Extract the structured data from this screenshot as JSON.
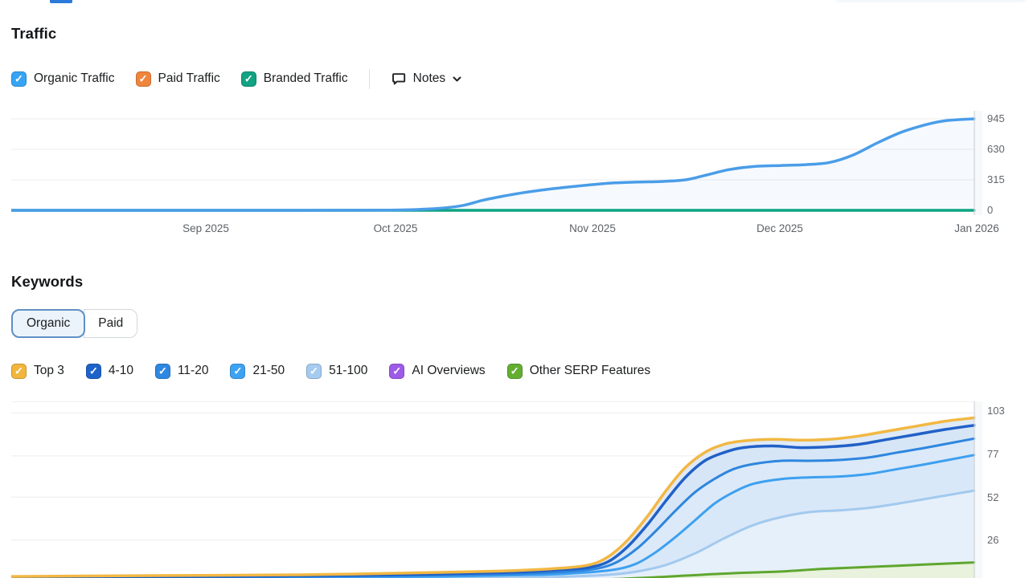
{
  "brand_accent": "#2b79d8",
  "traffic": {
    "title": "Traffic",
    "legend": [
      {
        "label": "Organic Traffic",
        "color": "#36A4F4",
        "checked": true
      },
      {
        "label": "Paid Traffic",
        "color": "#F0853C",
        "checked": true
      },
      {
        "label": "Branded Traffic",
        "color": "#12A284",
        "checked": true
      }
    ],
    "notes_label": "Notes"
  },
  "keywords": {
    "title": "Keywords",
    "toggle": [
      {
        "label": "Organic",
        "selected": true
      },
      {
        "label": "Paid",
        "selected": false
      }
    ],
    "legend": [
      {
        "label": "Top 3",
        "color": "#F2B63C",
        "checked": true
      },
      {
        "label": "4-10",
        "color": "#1E63C9",
        "checked": true
      },
      {
        "label": "11-20",
        "color": "#2E87E0",
        "checked": true
      },
      {
        "label": "21-50",
        "color": "#3DA2F2",
        "checked": true
      },
      {
        "label": "51-100",
        "color": "#A6CBF0",
        "checked": true
      },
      {
        "label": "AI Overviews",
        "color": "#9D5BE8",
        "checked": true
      },
      {
        "label": "Other SERP Features",
        "color": "#63AE31",
        "checked": true
      }
    ]
  },
  "chart_data": [
    {
      "name": "traffic-over-time",
      "type": "line",
      "title": "Traffic",
      "x_axis_labels": [
        "Sep 2025",
        "Oct 2025",
        "Nov 2025",
        "Dec 2025",
        "Jan 2026"
      ],
      "y_ticks": [
        945,
        630,
        315,
        0
      ],
      "ylim": [
        0,
        945
      ],
      "grid": "horizontal",
      "legend_position": "top",
      "series": [
        {
          "name": "Paid Traffic",
          "color": "#F0853C",
          "width": 3,
          "points": [
            [
              0,
              0
            ],
            [
              1,
              0
            ]
          ]
        },
        {
          "name": "Branded Traffic",
          "color": "#0CA381",
          "width": 3.5,
          "points": [
            [
              0,
              0
            ],
            [
              1,
              0
            ]
          ]
        },
        {
          "name": "Organic Traffic",
          "color": "#4A9DE8",
          "width": 3.5,
          "fill": "rgba(74,157,232,0.05)",
          "points": [
            [
              0,
              0
            ],
            [
              0.25,
              0
            ],
            [
              0.36,
              1
            ],
            [
              0.4,
              3
            ],
            [
              0.425,
              10
            ],
            [
              0.45,
              25
            ],
            [
              0.47,
              52
            ],
            [
              0.49,
              105
            ],
            [
              0.51,
              145
            ],
            [
              0.53,
              180
            ],
            [
              0.555,
              215
            ],
            [
              0.58,
              243
            ],
            [
              0.603,
              265
            ],
            [
              0.625,
              283
            ],
            [
              0.65,
              292
            ],
            [
              0.675,
              298
            ],
            [
              0.7,
              315
            ],
            [
              0.72,
              360
            ],
            [
              0.745,
              420
            ],
            [
              0.77,
              452
            ],
            [
              0.8,
              463
            ],
            [
              0.825,
              472
            ],
            [
              0.85,
              495
            ],
            [
              0.875,
              575
            ],
            [
              0.9,
              700
            ],
            [
              0.925,
              810
            ],
            [
              0.95,
              885
            ],
            [
              0.97,
              925
            ],
            [
              1,
              945
            ]
          ]
        }
      ]
    },
    {
      "name": "keywords-positions",
      "type": "area",
      "title": "Keywords (Organic)",
      "y_ticks": [
        103,
        77,
        52,
        26
      ],
      "ylim": [
        0,
        110
      ],
      "grid": "horizontal",
      "series": [
        {
          "name": "AI Overviews",
          "color": "#9D5BE8",
          "width": 2.5,
          "points": [
            [
              0,
              0.2
            ],
            [
              0.5,
              0.4
            ],
            [
              1,
              1
            ]
          ]
        },
        {
          "name": "Other SERP Features",
          "color": "#5FA62F",
          "width": 3,
          "points": [
            [
              0,
              0.5
            ],
            [
              0.3,
              1
            ],
            [
              0.5,
              1.5
            ],
            [
              0.6,
              2
            ],
            [
              0.65,
              3
            ],
            [
              0.7,
              4.5
            ],
            [
              0.75,
              6
            ],
            [
              0.8,
              7
            ],
            [
              0.84,
              8.5
            ],
            [
              0.88,
              9.5
            ],
            [
              0.92,
              10.5
            ],
            [
              0.96,
              11.5
            ],
            [
              1,
              12.5
            ]
          ]
        },
        {
          "name": "51-100",
          "color": "#A3C9EE",
          "width": 3,
          "points": [
            [
              0,
              2
            ],
            [
              0.3,
              2.5
            ],
            [
              0.5,
              3
            ],
            [
              0.58,
              4
            ],
            [
              0.62,
              5
            ],
            [
              0.65,
              7
            ],
            [
              0.68,
              11
            ],
            [
              0.71,
              18
            ],
            [
              0.74,
              27
            ],
            [
              0.77,
              35
            ],
            [
              0.8,
              40
            ],
            [
              0.83,
              43
            ],
            [
              0.86,
              44
            ],
            [
              0.89,
              45.5
            ],
            [
              0.92,
              48
            ],
            [
              0.95,
              51
            ],
            [
              1,
              56
            ]
          ]
        },
        {
          "name": "21-50",
          "color": "#3DA0F0",
          "width": 3,
          "points": [
            [
              0,
              2.5
            ],
            [
              0.25,
              3
            ],
            [
              0.45,
              4
            ],
            [
              0.55,
              5
            ],
            [
              0.6,
              6.5
            ],
            [
              0.63,
              8.5
            ],
            [
              0.65,
              12
            ],
            [
              0.67,
              19
            ],
            [
              0.69,
              28
            ],
            [
              0.71,
              38
            ],
            [
              0.73,
              48
            ],
            [
              0.75,
              55
            ],
            [
              0.77,
              60
            ],
            [
              0.8,
              63
            ],
            [
              0.83,
              64
            ],
            [
              0.86,
              64.5
            ],
            [
              0.89,
              66
            ],
            [
              0.92,
              69
            ],
            [
              0.95,
              72
            ],
            [
              1,
              77.5
            ]
          ]
        },
        {
          "name": "11-20",
          "color": "#2E86DE",
          "width": 3,
          "points": [
            [
              0,
              3
            ],
            [
              0.2,
              3.5
            ],
            [
              0.4,
              4.5
            ],
            [
              0.52,
              5.5
            ],
            [
              0.58,
              7
            ],
            [
              0.61,
              9
            ],
            [
              0.63,
              13
            ],
            [
              0.65,
              21
            ],
            [
              0.67,
              32
            ],
            [
              0.69,
              44
            ],
            [
              0.71,
              55
            ],
            [
              0.73,
              63
            ],
            [
              0.75,
              69
            ],
            [
              0.77,
              72
            ],
            [
              0.8,
              74
            ],
            [
              0.83,
              74
            ],
            [
              0.86,
              74.5
            ],
            [
              0.89,
              76
            ],
            [
              0.92,
              79
            ],
            [
              0.95,
              82
            ],
            [
              1,
              87.5
            ]
          ]
        },
        {
          "name": "4-10",
          "color": "#2161C7",
          "width": 3.5,
          "points": [
            [
              0,
              3.5
            ],
            [
              0.2,
              4
            ],
            [
              0.4,
              5
            ],
            [
              0.52,
              6.5
            ],
            [
              0.57,
              8
            ],
            [
              0.6,
              9.5
            ],
            [
              0.62,
              13
            ],
            [
              0.64,
              22
            ],
            [
              0.66,
              35
            ],
            [
              0.68,
              50
            ],
            [
              0.7,
              64
            ],
            [
              0.72,
              74
            ],
            [
              0.74,
              79
            ],
            [
              0.76,
              82
            ],
            [
              0.79,
              83
            ],
            [
              0.82,
              82
            ],
            [
              0.85,
              82.5
            ],
            [
              0.88,
              84
            ],
            [
              0.91,
              87
            ],
            [
              0.94,
              90
            ],
            [
              0.97,
              93
            ],
            [
              1,
              95.5
            ]
          ]
        },
        {
          "name": "Top 3",
          "color": "#F2B843",
          "width": 3.5,
          "points": [
            [
              0,
              4
            ],
            [
              0.15,
              4.5
            ],
            [
              0.3,
              5
            ],
            [
              0.45,
              6.5
            ],
            [
              0.52,
              7.5
            ],
            [
              0.57,
              9
            ],
            [
              0.6,
              11
            ],
            [
              0.62,
              16
            ],
            [
              0.64,
              26
            ],
            [
              0.66,
              40
            ],
            [
              0.68,
              56
            ],
            [
              0.7,
              70
            ],
            [
              0.72,
              79
            ],
            [
              0.74,
              84
            ],
            [
              0.76,
              86
            ],
            [
              0.79,
              87
            ],
            [
              0.82,
              86.5
            ],
            [
              0.85,
              87
            ],
            [
              0.88,
              89
            ],
            [
              0.91,
              92
            ],
            [
              0.94,
              95
            ],
            [
              0.97,
              98
            ],
            [
              1,
              100
            ]
          ]
        }
      ],
      "bands": [
        {
          "upper": "51-100",
          "lower": "baseline",
          "color": "#E6F0FA"
        },
        {
          "upper": "Other SERP Features",
          "lower": "baseline",
          "color": "#E9F2DC"
        },
        {
          "upper": "21-50",
          "lower": "51-100",
          "color": "#D9E8F9"
        },
        {
          "upper": "11-20",
          "lower": "21-50",
          "color": "#DBE9F8"
        },
        {
          "upper": "4-10",
          "lower": "11-20",
          "color": "#D7E6F7"
        },
        {
          "upper": "Top 3",
          "lower": "4-10",
          "color": "#DFEAF8"
        }
      ]
    }
  ]
}
